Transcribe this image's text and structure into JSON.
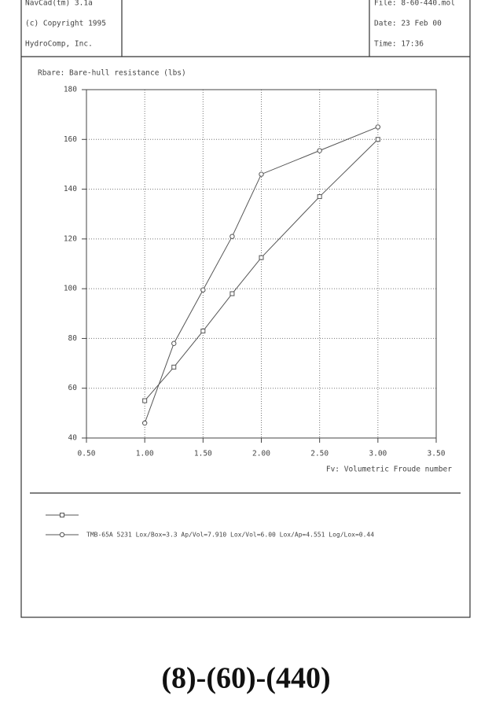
{
  "header": {
    "left": [
      "NavCad(tm) 3.1a",
      "(c) Copyright 1995",
      "HydroComp, Inc."
    ],
    "right": [
      "File: 8-60-440.mol",
      "Date: 23 Feb 00",
      "Time: 17:36"
    ]
  },
  "chart_data": {
    "type": "line",
    "title": "Rbare: Bare-hull resistance (lbs)",
    "x_label": "Fv: Volumetric Froude number",
    "series": [
      {
        "color": "#555555",
        "marker": "square",
        "x": [
          1.0,
          1.25,
          1.5,
          1.75,
          2.0,
          2.5,
          3.0
        ],
        "values": [
          55,
          68.5,
          83,
          98,
          112.5,
          137,
          160
        ]
      },
      {
        "name": "TMB-65A 5231 Lox/Box=3.3 Ap/Vol=7.910 Lox/Vol=6.00 Lox/Ap=4.551 Log/Lox=0.44",
        "color": "#555555",
        "marker": "circle",
        "x": [
          1.0,
          1.25,
          1.5,
          1.75,
          2.0,
          2.5,
          3.0
        ],
        "values": [
          46,
          78,
          99.5,
          121,
          146,
          155.5,
          165
        ]
      }
    ],
    "xlim": [
      0.5,
      3.5
    ],
    "ylim": [
      40,
      180
    ],
    "xticks": [
      {
        "value": 0.5,
        "label": "0.50"
      },
      {
        "value": 1.0,
        "label": "1.00"
      },
      {
        "value": 1.5,
        "label": "1.50"
      },
      {
        "value": 2.0,
        "label": "2.00"
      },
      {
        "value": 2.5,
        "label": "2.50"
      },
      {
        "value": 3.0,
        "label": "3.00"
      },
      {
        "value": 3.5,
        "label": "3.50"
      }
    ],
    "yticks": [
      40,
      60,
      80,
      100,
      120,
      140,
      160,
      180
    ],
    "grid": true
  },
  "caption": "(8)-(60)-(440)"
}
